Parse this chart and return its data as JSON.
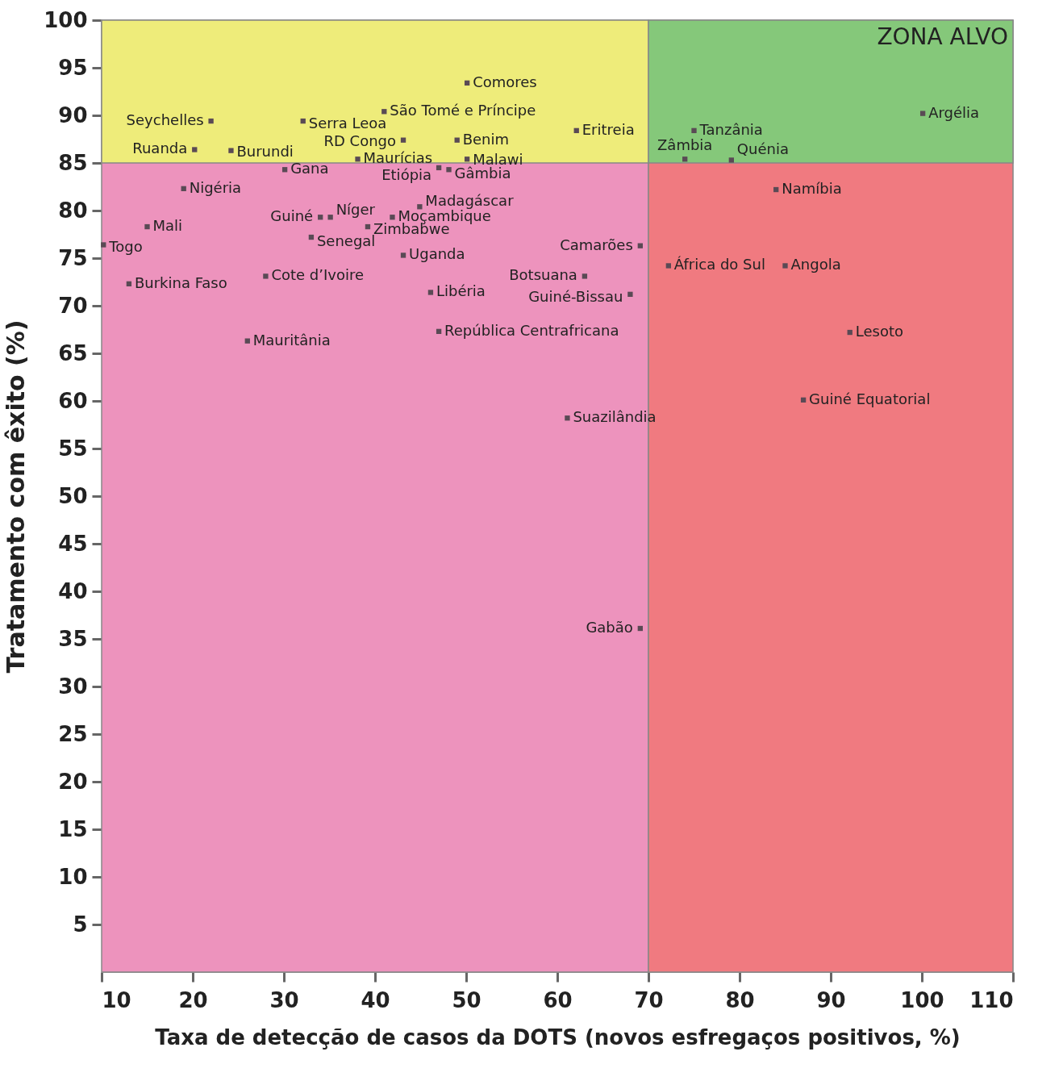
{
  "chart_data": {
    "type": "scatter",
    "xlabel": "Taxa de detecção de casos da DOTS (novos esfregaços positivos, %)",
    "ylabel": "Tratamento com êxito (%)",
    "xlim": [
      10,
      110
    ],
    "xticks": [
      10,
      20,
      30,
      40,
      50,
      60,
      70,
      80,
      90,
      100,
      110
    ],
    "ylim": [
      0,
      100
    ],
    "yticks": [
      5,
      10,
      15,
      20,
      25,
      30,
      35,
      40,
      45,
      50,
      55,
      60,
      65,
      70,
      75,
      80,
      85,
      90,
      95,
      100
    ],
    "grid": false,
    "marker": "square",
    "bands": [
      {
        "axis": "x",
        "from": 10,
        "to": 70,
        "color": "#ed93bd"
      },
      {
        "axis": "x",
        "from": 70,
        "to": 110,
        "color": "#f07a80"
      },
      {
        "axis": "y",
        "from": 85,
        "to": 100,
        "color": "#eeec7a"
      },
      {
        "axis": "y",
        "from": 85,
        "to": 100,
        "label": "ZONA ALVO",
        "color": "#85c87a"
      }
    ],
    "series": [
      {
        "color": "#5a4a55",
        "x": [
          50.1,
          22.0,
          32.1,
          41.0,
          62.1,
          43.1,
          49.0,
          20.2,
          24.2,
          38.1,
          50.1,
          47.0,
          48.1,
          30.1,
          19.0,
          44.9,
          34.0,
          35.1,
          41.9,
          15.0,
          39.2,
          33.0,
          10.2,
          69.1,
          43.1,
          28.0,
          13.0,
          63.0,
          46.1,
          68.0,
          47.0,
          26.0,
          61.1,
          69.1,
          100.1,
          75.0,
          74.0,
          79.1,
          84.0,
          72.2,
          85.0,
          92.1,
          87.0
        ],
        "values": [
          93.4,
          89.4,
          89.4,
          90.4,
          88.4,
          87.4,
          87.4,
          86.4,
          86.3,
          85.4,
          85.4,
          84.5,
          84.3,
          84.3,
          82.3,
          80.4,
          79.3,
          79.3,
          79.3,
          78.3,
          78.3,
          77.2,
          76.4,
          76.3,
          75.3,
          73.1,
          72.3,
          73.1,
          71.4,
          71.2,
          67.3,
          66.3,
          58.2,
          36.1,
          90.2,
          88.4,
          85.4,
          85.3,
          82.2,
          74.2,
          74.2,
          67.2,
          60.1
        ],
        "value_labels": [
          "Comores",
          "Seychelles",
          "Serra Leoa",
          "São Tomé e Príncipe",
          "Eritreia",
          "RD Congo",
          "Benim",
          "Ruanda",
          "Burundi",
          "Maurícias",
          "Malawi",
          "Etiópia",
          "Gâmbia",
          "Gana",
          "Nigéria",
          "Madagáscar",
          "Guiné",
          "Níger",
          "Moçambique",
          "Mali",
          "Zimbabwe",
          "Senegal",
          "Togo",
          "Camarões",
          "Uganda",
          "Cote d’Ivoire",
          "Burkina Faso",
          "Botsuana",
          "Libéria",
          "Guiné-Bissau",
          "República Centrafricana",
          "Mauritânia",
          "Suazilândia",
          "Gabão",
          "Argélia",
          "Tanzânia",
          "Zâmbia",
          "Quénia",
          "Namíbia",
          "África do Sul",
          "Angola",
          "Lesoto",
          "Guiné Equatorial"
        ]
      }
    ]
  }
}
